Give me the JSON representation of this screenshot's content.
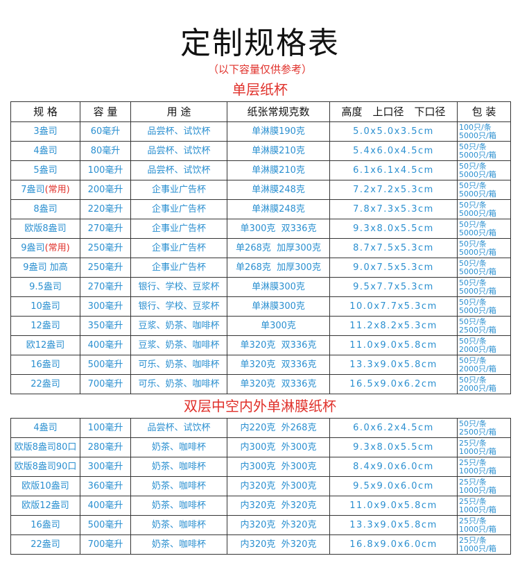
{
  "title": "定制规格表",
  "subtitle": "（以下容量仅供参考）",
  "headers": [
    "规 格",
    "容 量",
    "用 途",
    "纸张常规克数",
    "高度　上口径　下口径",
    "包 装"
  ],
  "section1": {
    "title": "单层纸杯",
    "rows": [
      {
        "spec": "3盎司",
        "note": "",
        "cap": "60毫升",
        "use": "品尝杯、试饮杯",
        "paper": "单淋膜190克",
        "size": "5.0x5.0x3.5cm",
        "pack1": "100只/条",
        "pack2": "5000只/箱"
      },
      {
        "spec": "4盎司",
        "note": "",
        "cap": "80毫升",
        "use": "品尝杯、试饮杯",
        "paper": "单淋膜210克",
        "size": "5.4x6.0x4.5cm",
        "pack1": "50只/条",
        "pack2": "5000只/箱"
      },
      {
        "spec": "5盎司",
        "note": "",
        "cap": "100毫升",
        "use": "品尝杯、试饮杯",
        "paper": "单淋膜210克",
        "size": "6.1x6.1x4.5cm",
        "pack1": "50只/条",
        "pack2": "5000只/箱"
      },
      {
        "spec": "7盎司",
        "note": "(常用)",
        "cap": "200毫升",
        "use": "企事业广告杯",
        "paper": "单淋膜248克",
        "size": "7.2x7.2x5.3cm",
        "pack1": "50只/条",
        "pack2": "5000只/箱"
      },
      {
        "spec": "8盎司",
        "note": "",
        "cap": "220毫升",
        "use": "企事业广告杯",
        "paper": "单淋膜248克",
        "size": "7.8x7.3x5.3cm",
        "pack1": "50只/条",
        "pack2": "5000只/箱"
      },
      {
        "spec": "欧版8盎司",
        "note": "",
        "cap": "270毫升",
        "use": "企事业广告杯",
        "paper": "单300克  双336克",
        "size": "9.3x8.0x5.5cm",
        "pack1": "50只/条",
        "pack2": "5000只/箱"
      },
      {
        "spec": "9盎司",
        "note": "(常用)",
        "cap": "250毫升",
        "use": "企事业广告杯",
        "paper": "单268克  加厚300克",
        "size": "8.7x7.5x5.3cm",
        "pack1": "50只/条",
        "pack2": "5000只/箱"
      },
      {
        "spec": "9盎司 加高",
        "note": "",
        "cap": "250毫升",
        "use": "企事业广告杯",
        "paper": "单268克  加厚300克",
        "size": "9.0x7.5x5.3cm",
        "pack1": "50只/条",
        "pack2": "5000只/箱"
      },
      {
        "spec": "9.5盎司",
        "note": "",
        "cap": "270毫升",
        "use": "银行、学校、豆浆杯",
        "paper": "单淋膜300克",
        "size": "9.5x7.7x5.3cm",
        "pack1": "50只/条",
        "pack2": "5000只/箱"
      },
      {
        "spec": "10盎司",
        "note": "",
        "cap": "300毫升",
        "use": "银行、学校、豆浆杯",
        "paper": "单淋膜300克",
        "size": "10.0x7.7x5.3cm",
        "pack1": "50只/条",
        "pack2": "5000只/箱"
      },
      {
        "spec": "12盎司",
        "note": "",
        "cap": "350毫升",
        "use": "豆浆、奶茶、咖啡杯",
        "paper": "单300克",
        "size": "11.2x8.2x5.3cm",
        "pack1": "50只/条",
        "pack2": "2500只/箱"
      },
      {
        "spec": "欧12盎司",
        "note": "",
        "cap": "400毫升",
        "use": "豆浆、奶茶、咖啡杯",
        "paper": "单320克  双336克",
        "size": "11.0x9.0x5.8cm",
        "pack1": "50只/条",
        "pack2": "2000只/箱"
      },
      {
        "spec": "16盎司",
        "note": "",
        "cap": "500毫升",
        "use": "可乐、奶茶、咖啡杯",
        "paper": "单320克  双336克",
        "size": "13.3x9.0x5.8cm",
        "pack1": "50只/条",
        "pack2": "2000只/箱"
      },
      {
        "spec": "22盎司",
        "note": "",
        "cap": "700毫升",
        "use": "可乐、奶茶、咖啡杯",
        "paper": "单320克  双336克",
        "size": "16.5x9.0x6.2cm",
        "pack1": "50只/条",
        "pack2": "2000只/箱"
      }
    ]
  },
  "section2": {
    "title": "双层中空内外单淋膜纸杯",
    "rows": [
      {
        "spec": "4盎司",
        "note": "",
        "cap": "100毫升",
        "use": "品尝杯、试饮杯",
        "paper": "内220克  外268克",
        "size": "6.0x6.2x4.5cm",
        "pack1": "50只/条",
        "pack2": "2500只/箱"
      },
      {
        "spec": "欧版8盎司80口",
        "note": "",
        "cap": "280毫升",
        "use": "奶茶、咖啡杯",
        "paper": "内300克  外300克",
        "size": "9.3x8.0x5.5cm",
        "pack1": "25只/条",
        "pack2": "1000只/箱"
      },
      {
        "spec": "欧版8盎司90口",
        "note": "",
        "cap": "300毫升",
        "use": "奶茶、咖啡杯",
        "paper": "内300克  外300克",
        "size": "8.4x9.0x6.0cm",
        "pack1": "25只/条",
        "pack2": "1000只/箱"
      },
      {
        "spec": "欧版10盎司",
        "note": "",
        "cap": "360毫升",
        "use": "奶茶、咖啡杯",
        "paper": "内320克  外300克",
        "size": "9.5x9.0x6.0cm",
        "pack1": "25只/条",
        "pack2": "1000只/箱"
      },
      {
        "spec": "欧版12盎司",
        "note": "",
        "cap": "400毫升",
        "use": "奶茶、咖啡杯",
        "paper": "内320克  外320克",
        "size": "11.0x9.0x5.8cm",
        "pack1": "25只/条",
        "pack2": "1000只/箱"
      },
      {
        "spec": "16盎司",
        "note": "",
        "cap": "500毫升",
        "use": "奶茶、咖啡杯",
        "paper": "内320克  外320克",
        "size": "13.3x9.0x5.8cm",
        "pack1": "25只/条",
        "pack2": "1000只/箱"
      },
      {
        "spec": "22盎司",
        "note": "",
        "cap": "700毫升",
        "use": "奶茶、咖啡杯",
        "paper": "内320克  外320克",
        "size": "16.8x9.0x6.0cm",
        "pack1": "25只/条",
        "pack2": "1000只/箱"
      }
    ]
  },
  "colors": {
    "text": "#2a8fd0",
    "accent": "#e0302a",
    "border": "#333333"
  }
}
